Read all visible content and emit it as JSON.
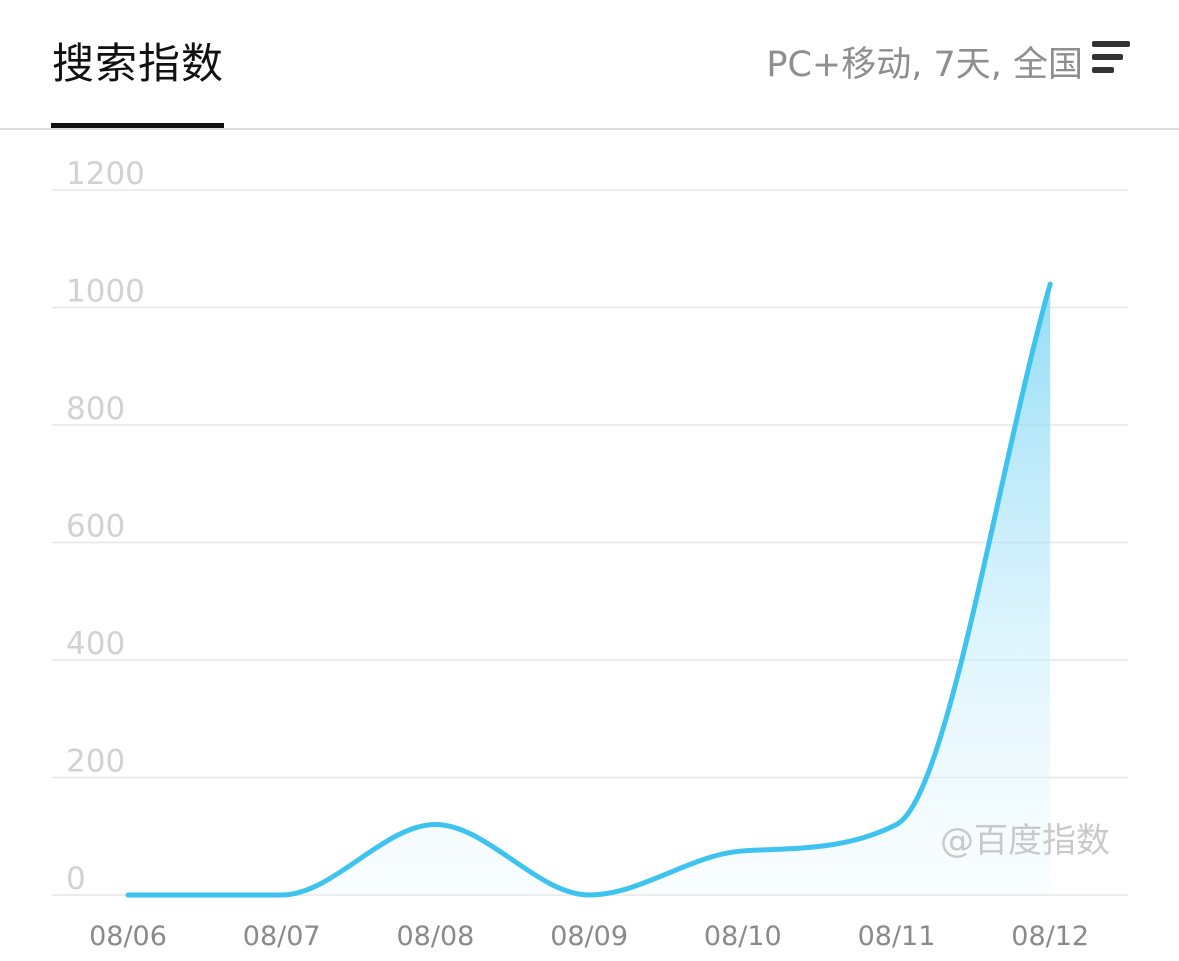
{
  "header": {
    "tab_title": "搜索指数",
    "filters": "PC+移动, 7天, 全国"
  },
  "icons": {
    "filter": "filter-menu-icon"
  },
  "colors": {
    "line": "#3ec3ef",
    "grid": "#e6e6e6",
    "tab_underline": "#111111"
  },
  "watermark": "@百度指数",
  "chart_data": {
    "type": "area",
    "categories": [
      "08/06",
      "08/07",
      "08/08",
      "08/09",
      "08/10",
      "08/11",
      "08/12"
    ],
    "values": [
      0,
      0,
      120,
      0,
      75,
      120,
      1040
    ],
    "yticks": [
      "0",
      "200",
      "400",
      "600",
      "800",
      "1000",
      "1200"
    ],
    "ylim": [
      0,
      1200
    ],
    "grid": true,
    "title": "",
    "xlabel": "",
    "ylabel": ""
  }
}
